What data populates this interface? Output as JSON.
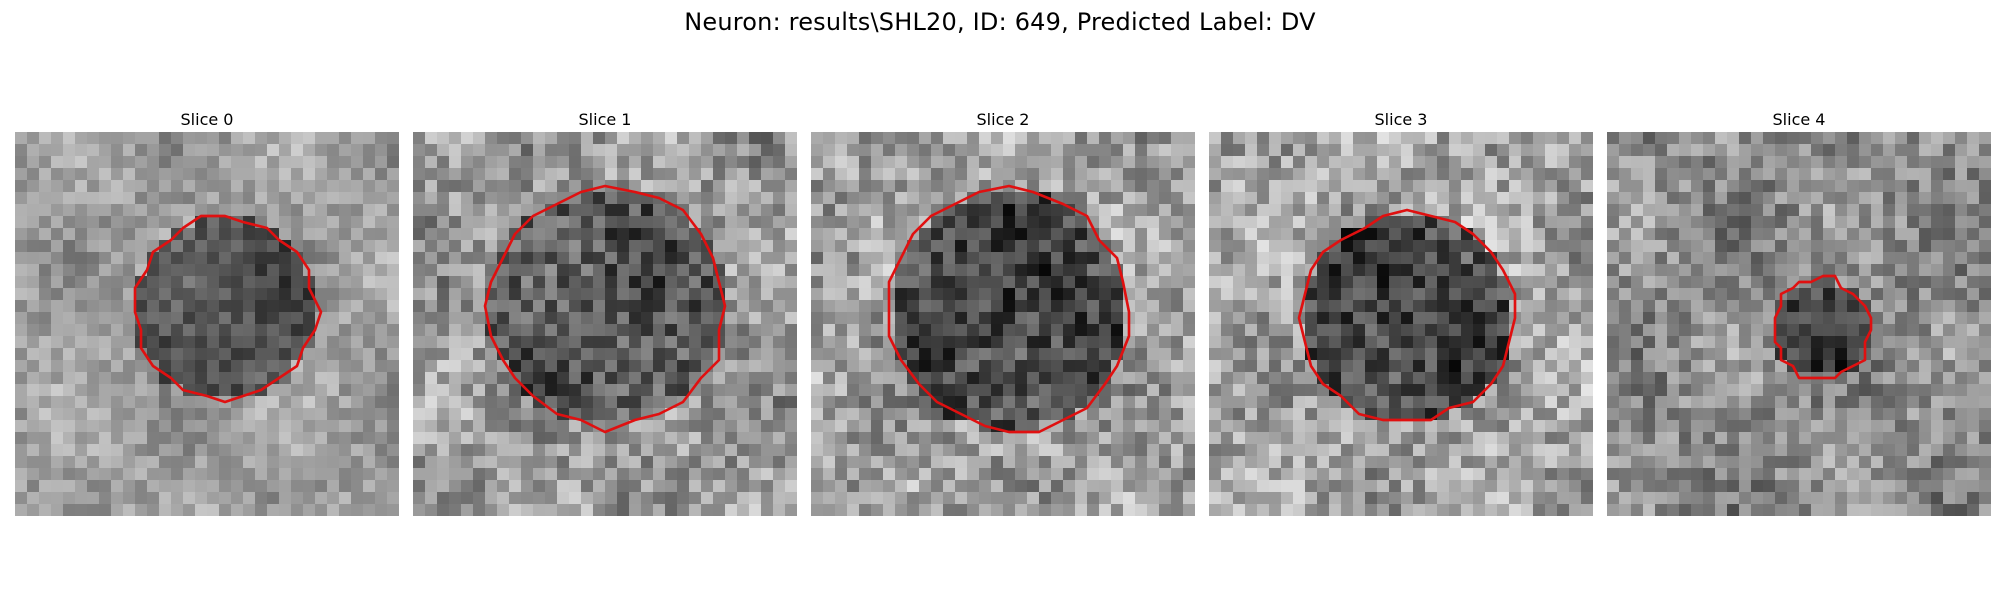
{
  "figure": {
    "title": "Neuron: results\\SHL20, ID: 649, Predicted Label: DV"
  },
  "contour_color": "#e01010",
  "colormap": "gray",
  "slices": [
    {
      "title": "Slice 0",
      "center": [
        17.5,
        14.8
      ],
      "radius": 7.6,
      "bg_mean": 0.62,
      "cell_mean": 0.32,
      "noise": 0.12
    },
    {
      "title": "Slice 1",
      "center": [
        16.2,
        14.6
      ],
      "radius": 9.9,
      "bg_mean": 0.6,
      "cell_mean": 0.34,
      "noise": 0.2
    },
    {
      "title": "Slice 2",
      "center": [
        16.5,
        14.9
      ],
      "radius": 10.0,
      "bg_mean": 0.62,
      "cell_mean": 0.27,
      "noise": 0.2
    },
    {
      "title": "Slice 3",
      "center": [
        16.5,
        15.5
      ],
      "radius": 8.8,
      "bg_mean": 0.64,
      "cell_mean": 0.27,
      "noise": 0.2
    },
    {
      "title": "Slice 4",
      "center": [
        17.9,
        16.4
      ],
      "radius": 4.1,
      "bg_mean": 0.55,
      "cell_mean": 0.27,
      "noise": 0.18
    }
  ]
}
